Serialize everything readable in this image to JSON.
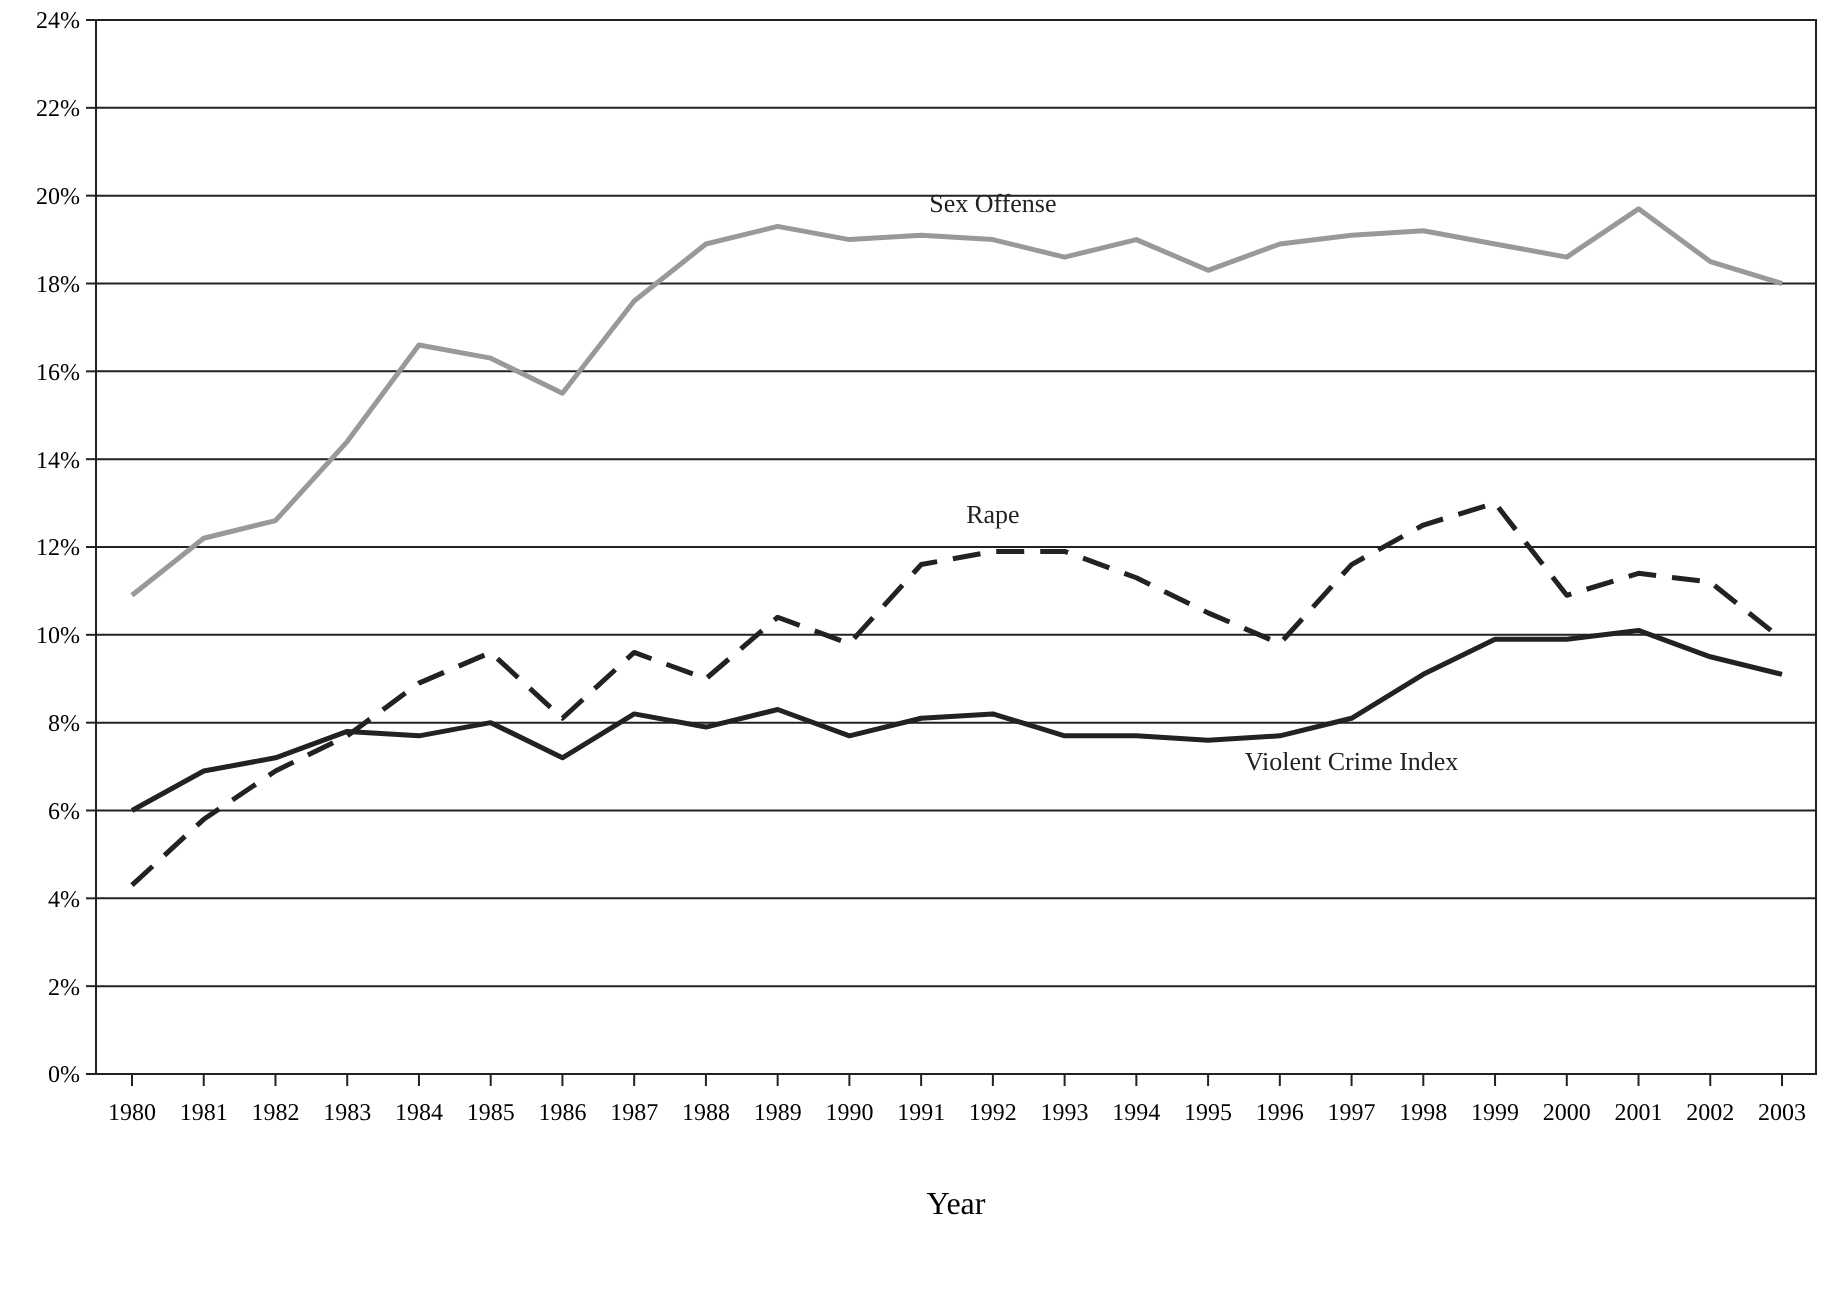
{
  "chart_data": {
    "type": "line",
    "xlabel": "Year",
    "categories": [
      "1980",
      "1981",
      "1982",
      "1983",
      "1984",
      "1985",
      "1986",
      "1987",
      "1988",
      "1989",
      "1990",
      "1991",
      "1992",
      "1993",
      "1994",
      "1995",
      "1996",
      "1997",
      "1998",
      "1999",
      "2000",
      "2001",
      "2002",
      "2003"
    ],
    "series": [
      {
        "name": "Sex Offense",
        "color": "#999999",
        "line_style": "solid",
        "values": [
          10.9,
          12.2,
          12.6,
          14.4,
          16.6,
          16.3,
          15.5,
          17.6,
          18.9,
          19.3,
          19.0,
          19.1,
          19.0,
          18.6,
          19.0,
          18.3,
          18.9,
          19.1,
          19.2,
          18.9,
          18.6,
          19.7,
          18.5,
          18.0
        ]
      },
      {
        "name": "Rape",
        "color": "#222222",
        "line_style": "dashed",
        "values": [
          4.3,
          5.8,
          6.9,
          7.7,
          8.9,
          9.6,
          8.1,
          9.6,
          9.0,
          10.4,
          9.8,
          11.6,
          11.9,
          11.9,
          11.3,
          10.5,
          9.8,
          11.6,
          12.5,
          13.0,
          10.9,
          11.4,
          11.2,
          9.9
        ]
      },
      {
        "name": "Violent Crime Index",
        "color": "#222222",
        "line_style": "solid",
        "values": [
          6.0,
          6.9,
          7.2,
          7.8,
          7.7,
          8.0,
          7.2,
          8.2,
          7.9,
          8.3,
          7.7,
          8.1,
          8.2,
          7.7,
          7.7,
          7.6,
          7.7,
          8.1,
          9.1,
          9.9,
          9.9,
          10.1,
          9.5,
          9.1
        ]
      }
    ],
    "ylim": [
      0,
      24
    ],
    "yticks": [
      {
        "value": 0,
        "label": "0%"
      },
      {
        "value": 2,
        "label": "2%"
      },
      {
        "value": 4,
        "label": "4%"
      },
      {
        "value": 6,
        "label": "6%"
      },
      {
        "value": 8,
        "label": "8%"
      },
      {
        "value": 10,
        "label": "10%"
      },
      {
        "value": 12,
        "label": "12%"
      },
      {
        "value": 14,
        "label": "14%"
      },
      {
        "value": 16,
        "label": "16%"
      },
      {
        "value": 18,
        "label": "18%"
      },
      {
        "value": 20,
        "label": "20%"
      },
      {
        "value": 22,
        "label": "22%"
      },
      {
        "value": 24,
        "label": "24%"
      }
    ],
    "grid": "y",
    "legend": false,
    "marker": "none"
  }
}
